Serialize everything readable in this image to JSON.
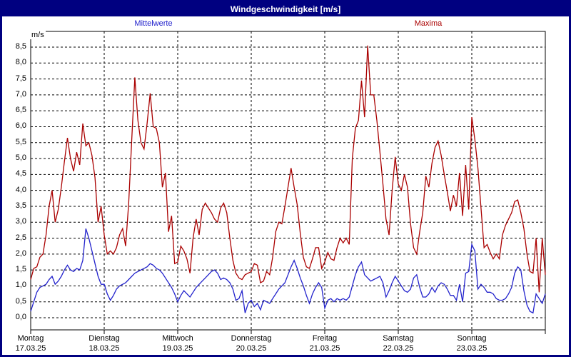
{
  "window": {
    "title": "Windgeschwindigkeit [m/s]"
  },
  "legend": {
    "mean_label": "Mittelwerte",
    "max_label": "Maxima"
  },
  "axis": {
    "unit_label": "m/s",
    "y_ticks": [
      "0,0",
      "0,5",
      "1,0",
      "1,5",
      "2,0",
      "2,5",
      "3,0",
      "3,5",
      "4,0",
      "4,5",
      "5,0",
      "5,5",
      "6,0",
      "6,5",
      "7,0",
      "7,5",
      "8,0",
      "8,5"
    ],
    "x_days": [
      {
        "weekday": "Montag",
        "date": "17.03.25"
      },
      {
        "weekday": "Dienstag",
        "date": "18.03.25"
      },
      {
        "weekday": "Mittwoch",
        "date": "19.03.25"
      },
      {
        "weekday": "Donnerstag",
        "date": "20.03.25"
      },
      {
        "weekday": "Freitag",
        "date": "21.03.25"
      },
      {
        "weekday": "Samstag",
        "date": "22.03.25"
      },
      {
        "weekday": "Sonntag",
        "date": "23.03.25"
      }
    ]
  },
  "colors": {
    "frame": "#000080",
    "titlebar_bg": "#000080",
    "titlebar_text": "#ffffff",
    "grid": "#000000",
    "mean_line": "#2222cc",
    "max_line": "#aa0000"
  },
  "chart_data": {
    "type": "line",
    "title": "Windgeschwindigkeit [m/s]",
    "ylabel": "m/s",
    "ylim": [
      0,
      9
    ],
    "ytick_step": 0.5,
    "grid": "dashed",
    "samples_per_day": 24,
    "x_days": [
      "17.03.25",
      "18.03.25",
      "19.03.25",
      "20.03.25",
      "21.03.25",
      "22.03.25",
      "23.03.25"
    ],
    "series": [
      {
        "name": "Mittelwerte",
        "color": "#2222cc",
        "values": [
          0.2,
          0.5,
          0.8,
          0.95,
          1.0,
          1.05,
          1.2,
          1.3,
          1.05,
          1.15,
          1.3,
          1.5,
          1.65,
          1.5,
          1.45,
          1.55,
          1.5,
          1.8,
          2.8,
          2.5,
          2.1,
          1.7,
          1.3,
          1.05,
          1.05,
          0.75,
          0.55,
          0.7,
          0.9,
          1.0,
          1.05,
          1.1,
          1.2,
          1.3,
          1.4,
          1.45,
          1.5,
          1.55,
          1.6,
          1.7,
          1.65,
          1.55,
          1.5,
          1.4,
          1.25,
          1.1,
          0.95,
          0.75,
          0.5,
          0.7,
          0.85,
          0.75,
          0.65,
          0.8,
          0.95,
          1.05,
          1.15,
          1.25,
          1.35,
          1.45,
          1.5,
          1.4,
          1.2,
          1.25,
          1.2,
          1.1,
          0.9,
          0.55,
          0.6,
          0.85,
          0.15,
          0.45,
          0.55,
          0.35,
          0.45,
          0.25,
          0.55,
          0.5,
          0.45,
          0.6,
          0.75,
          0.9,
          1.0,
          1.1,
          1.35,
          1.6,
          1.8,
          1.55,
          1.25,
          1.0,
          0.7,
          0.45,
          0.75,
          0.95,
          1.1,
          0.95,
          0.3,
          0.55,
          0.6,
          0.5,
          0.6,
          0.55,
          0.6,
          0.55,
          0.65,
          1.0,
          1.35,
          1.6,
          1.75,
          1.35,
          1.25,
          1.15,
          1.2,
          1.25,
          1.3,
          1.1,
          0.65,
          0.85,
          1.1,
          1.3,
          1.15,
          1.0,
          0.85,
          0.8,
          0.9,
          1.25,
          1.35,
          0.95,
          0.65,
          0.65,
          0.75,
          0.95,
          0.8,
          1.0,
          1.1,
          1.05,
          0.9,
          0.7,
          0.7,
          0.55,
          1.05,
          0.5,
          1.4,
          1.45,
          2.3,
          2.1,
          0.9,
          1.05,
          0.95,
          0.8,
          0.8,
          0.75,
          0.6,
          0.55,
          0.55,
          0.6,
          0.75,
          0.95,
          1.4,
          1.6,
          1.5,
          0.85,
          0.4,
          0.2,
          0.15,
          0.75,
          0.6,
          0.45,
          0.75
        ]
      },
      {
        "name": "Maxima",
        "color": "#aa0000",
        "values": [
          1.2,
          1.55,
          1.6,
          1.9,
          2.0,
          2.6,
          3.5,
          4.0,
          3.0,
          3.4,
          4.1,
          4.9,
          5.65,
          5.0,
          4.6,
          5.2,
          4.8,
          6.1,
          5.4,
          5.5,
          5.1,
          4.4,
          3.0,
          3.5,
          2.6,
          2.0,
          2.1,
          2.0,
          2.2,
          2.6,
          2.8,
          2.25,
          3.6,
          5.6,
          7.55,
          6.2,
          5.5,
          5.3,
          6.1,
          7.05,
          6.0,
          5.95,
          5.5,
          4.1,
          4.55,
          2.7,
          3.2,
          1.7,
          1.75,
          2.25,
          2.1,
          1.85,
          1.4,
          2.5,
          3.1,
          2.6,
          3.4,
          3.6,
          3.45,
          3.3,
          3.1,
          3.0,
          3.45,
          3.6,
          3.3,
          2.5,
          1.8,
          1.4,
          1.25,
          1.2,
          1.35,
          1.4,
          1.45,
          1.7,
          1.65,
          1.1,
          1.15,
          1.45,
          1.35,
          1.9,
          2.7,
          3.0,
          2.95,
          3.5,
          4.1,
          4.7,
          4.1,
          3.55,
          2.65,
          1.9,
          1.6,
          1.55,
          1.85,
          2.2,
          2.2,
          1.55,
          1.75,
          2.05,
          1.85,
          1.8,
          2.2,
          2.5,
          2.35,
          2.5,
          2.3,
          5.0,
          5.95,
          6.2,
          7.45,
          6.3,
          8.55,
          7.0,
          7.0,
          6.2,
          5.2,
          4.2,
          3.1,
          2.6,
          4.0,
          5.05,
          4.2,
          4.0,
          4.5,
          4.1,
          2.95,
          2.2,
          2.0,
          2.7,
          3.3,
          4.45,
          4.1,
          4.85,
          5.35,
          5.55,
          5.1,
          4.5,
          3.95,
          3.35,
          3.85,
          3.5,
          4.55,
          3.2,
          4.8,
          3.4,
          6.3,
          5.6,
          4.7,
          3.45,
          2.2,
          2.3,
          2.05,
          1.85,
          2.0,
          1.85,
          2.6,
          2.9,
          3.1,
          3.3,
          3.65,
          3.7,
          3.3,
          2.8,
          2.0,
          1.45,
          1.4,
          2.5,
          0.8,
          2.5,
          1.35
        ]
      }
    ]
  }
}
